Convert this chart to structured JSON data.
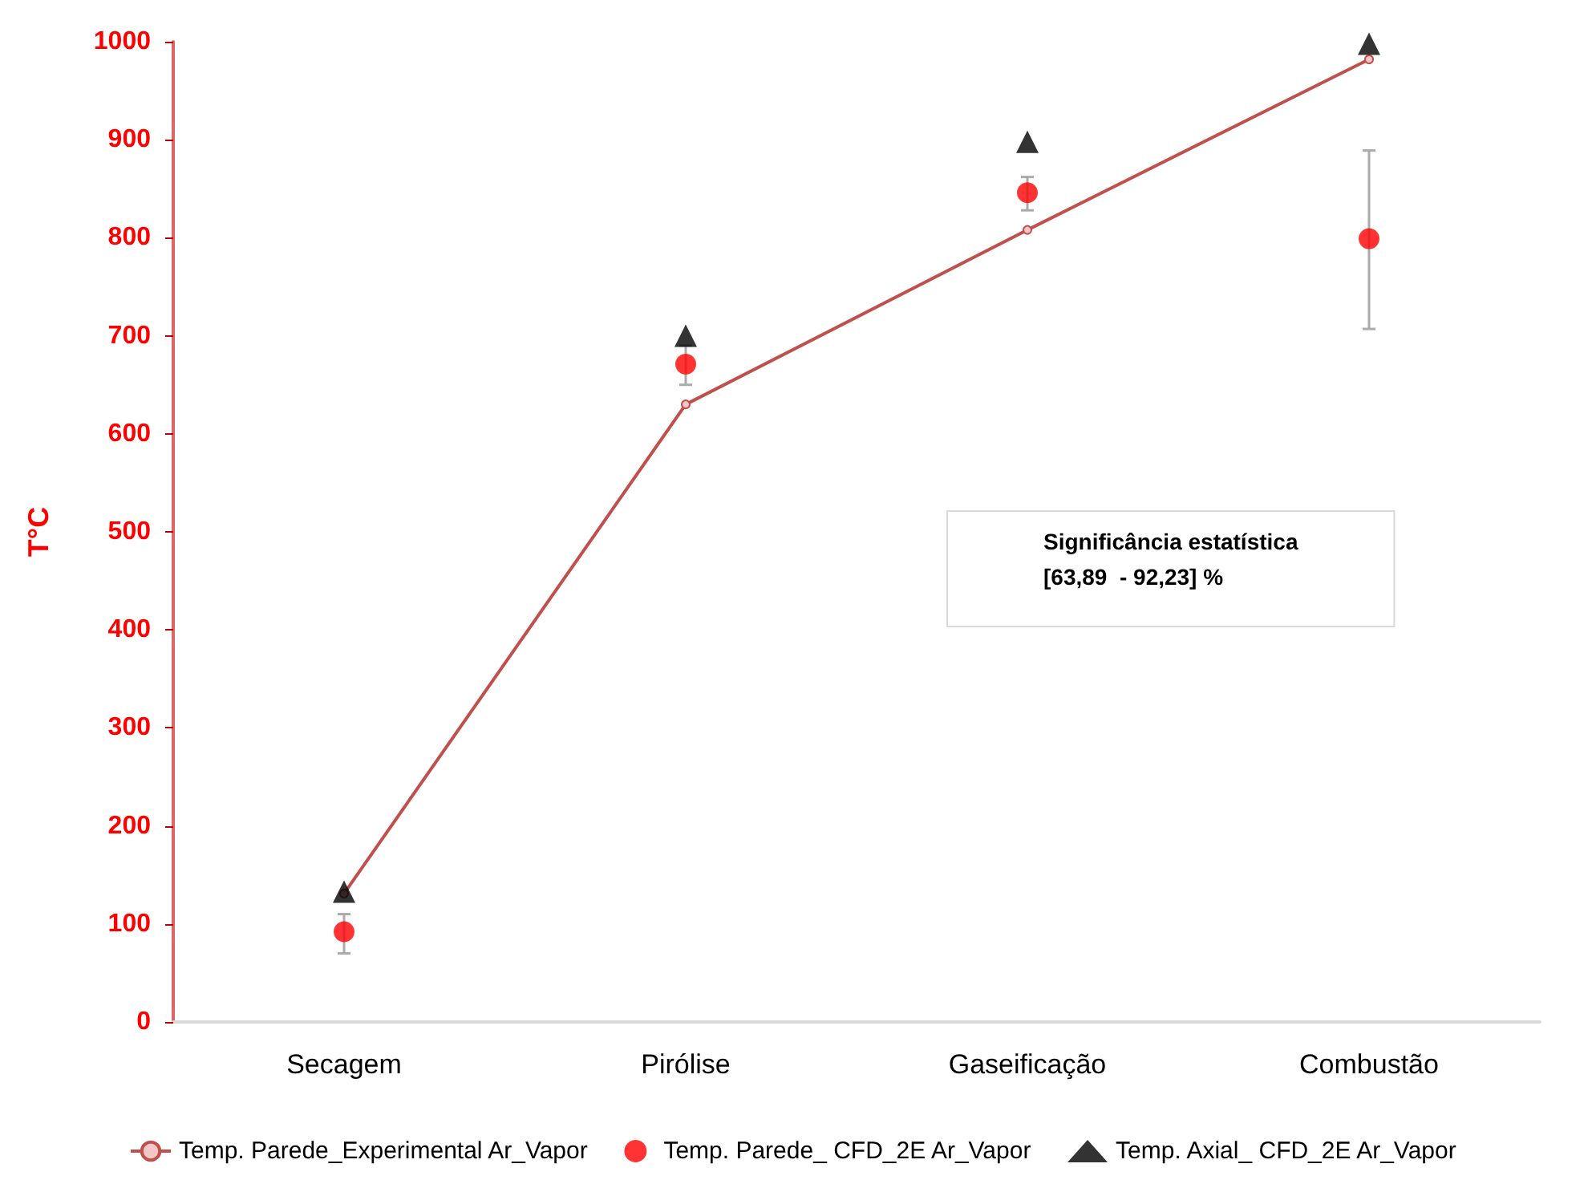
{
  "chart_data": {
    "type": "line",
    "ylabel": "T°C",
    "categories": [
      "Secagem",
      "Pirólise",
      "Gaseificação",
      "Combustão"
    ],
    "series": [
      {
        "name": "Temp. Parede_Experimental Ar_Vapor",
        "type": "line",
        "color": "#c0504d",
        "marker": "circle",
        "values": [
          131,
          630,
          808,
          982
        ]
      },
      {
        "name": "Temp. Parede_ CFD_2E Ar_Vapor",
        "type": "scatter",
        "color": "#ff0000",
        "marker": "circle",
        "values": [
          92,
          671,
          846,
          799
        ],
        "errors": [
          [
            70,
            110
          ],
          [
            650,
            690
          ],
          [
            828,
            862
          ],
          [
            707,
            889
          ]
        ]
      },
      {
        "name": "Temp. Axial_ CFD_2E Ar_Vapor",
        "type": "scatter",
        "color": "#000000",
        "marker": "triangle",
        "values": [
          133,
          700,
          898,
          998
        ]
      }
    ],
    "ylim": [
      0,
      1000
    ],
    "yticks": [
      0,
      100,
      200,
      300,
      400,
      500,
      600,
      700,
      800,
      900,
      1000
    ],
    "grid": false,
    "legend": "bottom",
    "annotations": [
      "Significância estatística\n[63,89  - 92,23] %"
    ]
  }
}
